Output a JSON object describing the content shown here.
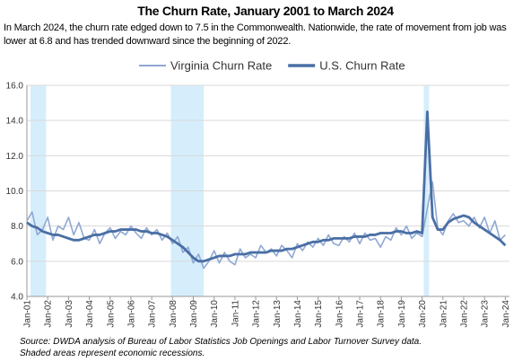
{
  "chart_data": {
    "type": "line",
    "title": "The Churn Rate, January 2001 to March 2024",
    "subtitle": "In March 2024, the churn rate edged down to 7.5 in the Commonwealth. Nationwide, the rate of movement from job was lower at 6.8 and has trended downward since the beginning of 2022.",
    "notes": [
      "Source: DWDA analysis of Bureau of Labor Statistics Job Openings and Labor Turnover Survey data.",
      "Shaded areas represent economic recessions."
    ],
    "x": [
      2001,
      2001.25,
      2001.5,
      2001.75,
      2002,
      2002.25,
      2002.5,
      2002.75,
      2003,
      2003.25,
      2003.5,
      2003.75,
      2004,
      2004.25,
      2004.5,
      2004.75,
      2005,
      2005.25,
      2005.5,
      2005.75,
      2006,
      2006.25,
      2006.5,
      2006.75,
      2007,
      2007.25,
      2007.5,
      2007.75,
      2008,
      2008.25,
      2008.5,
      2008.75,
      2009,
      2009.25,
      2009.5,
      2009.75,
      2010,
      2010.25,
      2010.5,
      2010.75,
      2011,
      2011.25,
      2011.5,
      2011.75,
      2012,
      2012.25,
      2012.5,
      2012.75,
      2013,
      2013.25,
      2013.5,
      2013.75,
      2014,
      2014.25,
      2014.5,
      2014.75,
      2015,
      2015.25,
      2015.5,
      2015.75,
      2016,
      2016.25,
      2016.5,
      2016.75,
      2017,
      2017.25,
      2017.5,
      2017.75,
      2018,
      2018.25,
      2018.5,
      2018.75,
      2019,
      2019.25,
      2019.5,
      2019.75,
      2020,
      2020.25,
      2020.5,
      2020.75,
      2021,
      2021.25,
      2021.5,
      2021.75,
      2022,
      2022.25,
      2022.5,
      2022.75,
      2023,
      2023.25,
      2023.5,
      2023.75,
      2024
    ],
    "series": [
      {
        "name": "Virginia Churn Rate",
        "color": "#8fa8d2",
        "values": [
          8.3,
          8.8,
          7.5,
          7.8,
          8.5,
          7.2,
          8.0,
          7.8,
          8.5,
          7.5,
          8.2,
          7.3,
          7.2,
          7.8,
          7.0,
          7.6,
          7.9,
          7.3,
          7.7,
          7.5,
          8.0,
          7.6,
          7.3,
          7.9,
          7.5,
          7.8,
          7.2,
          7.6,
          7.0,
          7.4,
          6.5,
          6.8,
          5.9,
          6.4,
          5.6,
          6.0,
          6.6,
          5.9,
          6.5,
          6.0,
          5.8,
          6.7,
          6.2,
          6.4,
          6.2,
          6.9,
          6.5,
          6.7,
          6.3,
          6.9,
          6.6,
          6.2,
          7.0,
          6.6,
          7.1,
          6.8,
          7.3,
          6.9,
          7.5,
          7.0,
          6.9,
          7.4,
          7.1,
          7.6,
          7.0,
          7.6,
          7.2,
          7.3,
          6.8,
          7.4,
          7.2,
          7.9,
          7.5,
          8.0,
          7.3,
          7.6,
          7.4,
          9.0,
          10.5,
          7.9,
          7.5,
          8.3,
          8.7,
          8.2,
          8.3,
          8.0,
          8.5,
          7.9,
          8.5,
          7.6,
          8.3,
          7.2,
          7.5
        ]
      },
      {
        "name": "U.S. Churn Rate",
        "color": "#4a6fa5",
        "values": [
          8.2,
          8.0,
          7.9,
          7.7,
          7.6,
          7.5,
          7.5,
          7.4,
          7.3,
          7.2,
          7.2,
          7.3,
          7.4,
          7.5,
          7.5,
          7.6,
          7.7,
          7.7,
          7.8,
          7.8,
          7.8,
          7.8,
          7.7,
          7.7,
          7.6,
          7.6,
          7.5,
          7.4,
          7.2,
          7.0,
          6.8,
          6.5,
          6.2,
          6.0,
          6.0,
          6.1,
          6.2,
          6.3,
          6.3,
          6.3,
          6.4,
          6.4,
          6.4,
          6.5,
          6.5,
          6.5,
          6.5,
          6.6,
          6.6,
          6.6,
          6.7,
          6.7,
          6.8,
          6.9,
          7.0,
          7.1,
          7.1,
          7.2,
          7.2,
          7.3,
          7.3,
          7.3,
          7.3,
          7.4,
          7.4,
          7.4,
          7.5,
          7.5,
          7.6,
          7.6,
          7.6,
          7.7,
          7.7,
          7.6,
          7.6,
          7.7,
          7.6,
          14.5,
          8.5,
          7.8,
          7.8,
          8.2,
          8.4,
          8.5,
          8.6,
          8.5,
          8.2,
          8.0,
          7.8,
          7.6,
          7.4,
          7.2,
          6.9
        ]
      }
    ],
    "shaded_periods": [
      [
        2001.17,
        2001.92
      ],
      [
        2007.92,
        2009.5
      ],
      [
        2020.08,
        2020.33
      ]
    ],
    "shade_color": "#d6eefb",
    "xlim": [
      2001,
      2024.2
    ],
    "xticks": [
      {
        "value": 2001,
        "label": "Jan-01"
      },
      {
        "value": 2002,
        "label": "Jan-02"
      },
      {
        "value": 2003,
        "label": "Jan-03"
      },
      {
        "value": 2004,
        "label": "Jan-04"
      },
      {
        "value": 2005,
        "label": "Jan-05"
      },
      {
        "value": 2006,
        "label": "Jan-06"
      },
      {
        "value": 2007,
        "label": "Jan-07"
      },
      {
        "value": 2008,
        "label": "Jan-08"
      },
      {
        "value": 2009,
        "label": "Jan-09"
      },
      {
        "value": 2010,
        "label": "Jan-10"
      },
      {
        "value": 2011,
        "label": "Jan-11"
      },
      {
        "value": 2012,
        "label": "Jan-12"
      },
      {
        "value": 2013,
        "label": "Jan-13"
      },
      {
        "value": 2014,
        "label": "Jan-14"
      },
      {
        "value": 2015,
        "label": "Jan-15"
      },
      {
        "value": 2016,
        "label": "Jan-16"
      },
      {
        "value": 2017,
        "label": "Jan-17"
      },
      {
        "value": 2018,
        "label": "Jan-18"
      },
      {
        "value": 2019,
        "label": "Jan-19"
      },
      {
        "value": 2020,
        "label": "Jan-20"
      },
      {
        "value": 2021,
        "label": "Jan-21"
      },
      {
        "value": 2022,
        "label": "Jan-22"
      },
      {
        "value": 2023,
        "label": "Jan-23"
      },
      {
        "value": 2024,
        "label": "Jan-24"
      }
    ],
    "ylim": [
      4,
      16
    ],
    "yticks": [
      {
        "value": 4,
        "label": "4.0"
      },
      {
        "value": 6,
        "label": "6.0"
      },
      {
        "value": 8,
        "label": "8.0"
      },
      {
        "value": 10,
        "label": "10.0"
      },
      {
        "value": 12,
        "label": "12.0"
      },
      {
        "value": 14,
        "label": "14.0"
      },
      {
        "value": 16,
        "label": "16.0"
      }
    ],
    "grid": true,
    "legend": "top"
  }
}
